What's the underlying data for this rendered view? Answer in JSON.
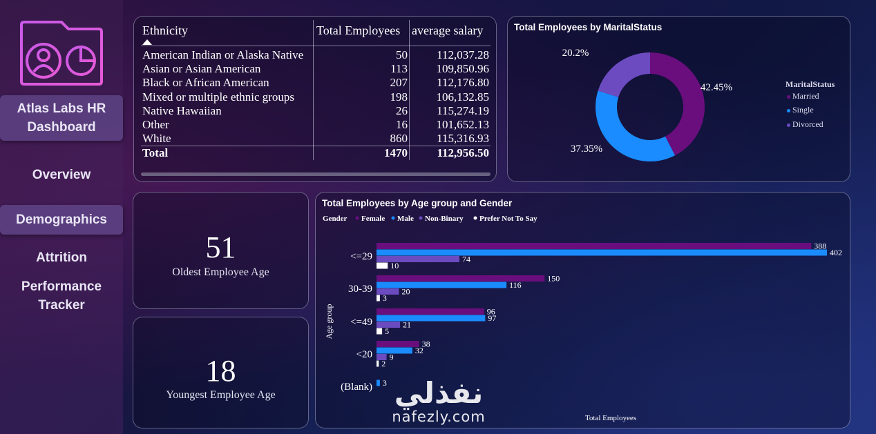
{
  "sidebar": {
    "title_line1": "Atlas Labs HR",
    "title_line2": "Dashboard",
    "overview": "Overview",
    "demographics": "Demographics",
    "attrition": "Attrition",
    "performance_line1": "Performance",
    "performance_line2": "Tracker"
  },
  "table": {
    "headers": [
      "Ethnicity",
      "Total Employees",
      "average salary"
    ],
    "rows": [
      [
        "American Indian or Alaska Native",
        "50",
        "112,037.28"
      ],
      [
        "Asian or Asian American",
        "113",
        "109,850.96"
      ],
      [
        "Black or African American",
        "207",
        "112,176.80"
      ],
      [
        "Mixed or multiple ethnic groups",
        "198",
        "106,132.85"
      ],
      [
        "Native Hawaiian",
        "26",
        "115,274.19"
      ],
      [
        "Other",
        "16",
        "101,652.13"
      ],
      [
        "White",
        "860",
        "115,316.93"
      ]
    ],
    "total": [
      "Total",
      "1470",
      "112,956.50"
    ]
  },
  "kpi": {
    "oldest_value": "51",
    "oldest_label": "Oldest Employee Age",
    "youngest_value": "18",
    "youngest_label": "Youngest Employee Age"
  },
  "watermark": {
    "arabic": "نفذلي",
    "latin": "nafezly.com"
  },
  "colors": {
    "female": "#6a0e7e",
    "male": "#1a8cff",
    "non_binary": "#6b4bbf",
    "prefer_not": "#ffffff",
    "married": "#6a0e7e",
    "single": "#1a8cff",
    "divorced": "#6b4bbf"
  },
  "chart_data": [
    {
      "type": "pie",
      "title": "Total Employees by MaritalStatus",
      "legend_title": "MaritalStatus",
      "legend_position": "right",
      "labels": [
        "Married",
        "Single",
        "Divorced"
      ],
      "values": [
        42.45,
        37.35,
        20.2
      ],
      "value_labels": [
        "42.45%",
        "37.35%",
        "20.2%"
      ]
    },
    {
      "type": "bar",
      "orientation": "horizontal",
      "title": "Total Employees by Age group and Gender",
      "legend_title": "Gender",
      "legend_position": "top-left",
      "xlabel": "Total Employees",
      "ylabel": "Age group",
      "categories": [
        "<=29",
        "30-39",
        "<=49",
        "<20",
        "(Blank)"
      ],
      "series": [
        {
          "name": "Female",
          "values": [
            388,
            150,
            96,
            38,
            null
          ]
        },
        {
          "name": "Male",
          "values": [
            402,
            116,
            97,
            32,
            3
          ]
        },
        {
          "name": "Non-Binary",
          "values": [
            74,
            20,
            21,
            9,
            null
          ]
        },
        {
          "name": "Prefer Not To Say",
          "values": [
            10,
            3,
            5,
            2,
            null
          ]
        }
      ],
      "xlim": [
        0,
        402
      ]
    }
  ]
}
